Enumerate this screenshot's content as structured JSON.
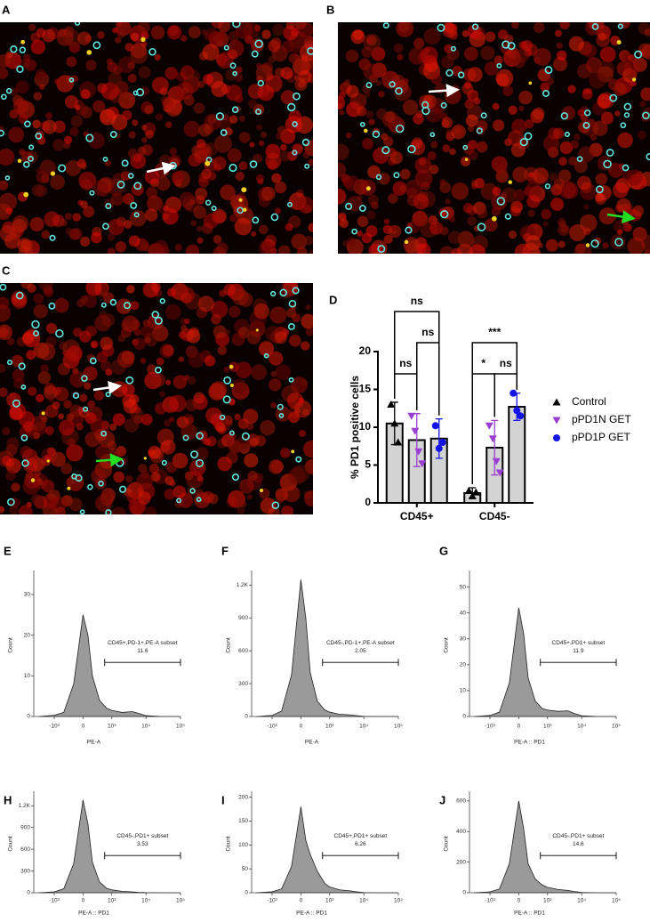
{
  "image_panels": [
    {
      "label": "A"
    },
    {
      "label": "B"
    },
    {
      "label": "C"
    }
  ],
  "chart_data": [
    {
      "panel": "D",
      "type": "bar",
      "categories": [
        "CD45+",
        "CD45-"
      ],
      "y_label": "% PD1 positive cells",
      "ylim": [
        0,
        20
      ],
      "yticks": [
        0,
        5,
        10,
        15,
        20
      ],
      "series": [
        {
          "name": "Control",
          "color": "#000000",
          "marker": "triangle",
          "values": [
            10.5,
            1.3
          ],
          "errors": [
            2.8,
            0.7
          ],
          "points": [
            [
              13,
              10.5,
              8
            ],
            [
              1.6,
              0.9,
              1.4
            ]
          ]
        },
        {
          "name": "pPD1N GET",
          "color": "#9b3fd1",
          "marker": "triangle-down",
          "values": [
            8.3,
            7.3
          ],
          "errors": [
            3.5,
            3.6
          ],
          "points": [
            [
              11.5,
              9.5,
              6.8,
              5.2
            ],
            [
              10.2,
              8.5,
              5.5,
              4
            ]
          ]
        },
        {
          "name": "pPD1P GET",
          "color": "#1414e6",
          "marker": "circle",
          "values": [
            8.5,
            12.7
          ],
          "errors": [
            2.6,
            1.8
          ],
          "points": [
            [
              10.2,
              7.2,
              8
            ],
            [
              14.5,
              12.2,
              11.5
            ]
          ]
        }
      ],
      "annotations": [
        "ns",
        "ns",
        "ns",
        "***",
        "*",
        "ns"
      ]
    },
    {
      "panel": "E",
      "type": "area",
      "color": "#9a9a9a",
      "x_label": "PE-A",
      "y_label": "Count",
      "x": [
        -3000,
        -1000,
        -500,
        -200,
        0,
        100,
        200,
        400,
        700,
        1000,
        2000,
        4000,
        6000,
        10000,
        30000,
        100000
      ],
      "values": [
        0,
        0.3,
        1,
        8,
        25,
        20,
        10,
        4,
        2,
        1.5,
        1,
        1.2,
        0.8,
        0.2,
        0,
        0
      ],
      "xlim": [
        -4000,
        100000
      ],
      "xticks": [
        {
          "value": -1000,
          "label": "-10³"
        },
        0,
        {
          "value": 1000,
          "label": "10³"
        },
        {
          "value": 10000,
          "label": "10⁴"
        },
        {
          "value": 100000,
          "label": "10⁵"
        }
      ],
      "ylim": [
        0,
        35
      ],
      "yticks": [
        0,
        10,
        20,
        30
      ],
      "gate_label": "CD45+,PD-1+,PE-A subset",
      "gate_value": 11.6,
      "gate_x": [
        600,
        100000
      ]
    },
    {
      "panel": "F",
      "type": "area",
      "color": "#9a9a9a",
      "x_label": "PE-A",
      "y_label": "Count",
      "x": [
        -3000,
        -1000,
        -500,
        -200,
        0,
        100,
        200,
        400,
        700,
        1000,
        2000,
        4000,
        6000,
        10000,
        30000,
        100000
      ],
      "values": [
        0,
        10,
        50,
        380,
        1250,
        900,
        400,
        140,
        60,
        40,
        20,
        15,
        8,
        2,
        0,
        0
      ],
      "xlim": [
        -4000,
        100000
      ],
      "xticks": [
        {
          "value": -1000,
          "label": "-10³"
        },
        0,
        {
          "value": 1000,
          "label": "10³"
        },
        {
          "value": 10000,
          "label": "10⁴"
        },
        {
          "value": 100000,
          "label": "10⁵"
        }
      ],
      "ylim": [
        0,
        1300
      ],
      "yticks": [
        0,
        300,
        600,
        900,
        {
          "value": 1200,
          "label": "1.2K"
        }
      ],
      "gate_label": "CD45-,PD-1+,PE-A subset",
      "gate_value": 2.05,
      "gate_x": [
        600,
        100000
      ]
    },
    {
      "panel": "G",
      "type": "area",
      "color": "#9a9a9a",
      "x_label": "PE-A :: PD1",
      "y_label": "Count",
      "x": [
        -3000,
        -1000,
        -500,
        -200,
        0,
        100,
        200,
        400,
        700,
        1000,
        2000,
        4000,
        6000,
        10000,
        30000,
        100000
      ],
      "values": [
        0,
        0.4,
        1.7,
        13,
        42,
        32,
        15,
        6,
        3,
        2.5,
        2,
        2.2,
        1.2,
        0.3,
        0,
        0
      ],
      "xlim": [
        -4000,
        100000
      ],
      "xticks": [
        {
          "value": -1000,
          "label": "-10³"
        },
        0,
        {
          "value": 1000,
          "label": "10³"
        },
        {
          "value": 10000,
          "label": "10⁴"
        },
        {
          "value": 100000,
          "label": "10⁵"
        }
      ],
      "ylim": [
        0,
        55
      ],
      "yticks": [
        0,
        10,
        20,
        30,
        40,
        50
      ],
      "gate_label": "CD45+,PD1+ subset",
      "gate_value": 11.9,
      "gate_x": [
        600,
        100000
      ]
    },
    {
      "panel": "H",
      "type": "area",
      "color": "#9a9a9a",
      "x_label": "PE-A :: PD1",
      "y_label": "Count",
      "x": [
        -3000,
        -1000,
        -500,
        -200,
        0,
        100,
        200,
        400,
        700,
        1000,
        2000,
        4000,
        6000,
        10000,
        30000,
        100000
      ],
      "values": [
        0,
        12,
        55,
        400,
        1280,
        950,
        420,
        150,
        60,
        40,
        20,
        12,
        6,
        2,
        0,
        0
      ],
      "xlim": [
        -4000,
        100000
      ],
      "xticks": [
        {
          "value": -1000,
          "label": "-10³"
        },
        0,
        {
          "value": 1000,
          "label": "10³"
        },
        {
          "value": 10000,
          "label": "10⁴"
        },
        {
          "value": 100000,
          "label": "10⁵"
        }
      ],
      "ylim": [
        0,
        1350
      ],
      "yticks": [
        0,
        300,
        600,
        900,
        {
          "value": 1200,
          "label": "1.2K"
        }
      ],
      "gate_label": "CD45-,PD1+ subset",
      "gate_value": 3.53,
      "gate_x": [
        600,
        100000
      ]
    },
    {
      "panel": "I",
      "type": "area",
      "color": "#9a9a9a",
      "x_label": "PE-A :: PD1",
      "y_label": "Count",
      "x": [
        -3000,
        -1000,
        -500,
        -200,
        0,
        100,
        200,
        400,
        700,
        1000,
        2000,
        4000,
        6000,
        10000,
        30000,
        100000
      ],
      "values": [
        0,
        2,
        8,
        55,
        180,
        110,
        80,
        45,
        20,
        12,
        6,
        4,
        2,
        0.5,
        0,
        0
      ],
      "xlim": [
        -4000,
        100000
      ],
      "xticks": [
        {
          "value": -1000,
          "label": "-10³"
        },
        0,
        {
          "value": 1000,
          "label": "10³"
        },
        {
          "value": 10000,
          "label": "10⁴"
        },
        {
          "value": 100000,
          "label": "10⁵"
        }
      ],
      "ylim": [
        0,
        205
      ],
      "yticks": [
        0,
        50,
        100,
        150,
        200
      ],
      "gate_label": "CD45+,PD1+ subset",
      "gate_value": 6.26,
      "gate_x": [
        600,
        100000
      ]
    },
    {
      "panel": "J",
      "type": "area",
      "color": "#9a9a9a",
      "x_label": "PE-A :: PD1",
      "y_label": "Count",
      "x": [
        -3000,
        -1000,
        -500,
        -200,
        0,
        100,
        200,
        400,
        700,
        1000,
        2000,
        4000,
        6000,
        10000,
        30000,
        100000
      ],
      "values": [
        0,
        6,
        25,
        190,
        600,
        420,
        190,
        90,
        50,
        35,
        22,
        15,
        8,
        2,
        0,
        0
      ],
      "xlim": [
        -4000,
        100000
      ],
      "xticks": [
        {
          "value": -1000,
          "label": "-10³"
        },
        0,
        {
          "value": 1000,
          "label": "10³"
        },
        {
          "value": 10000,
          "label": "10⁴"
        },
        {
          "value": 100000,
          "label": "10⁵"
        }
      ],
      "ylim": [
        0,
        640
      ],
      "yticks": [
        0,
        200,
        400,
        600
      ],
      "gate_label": "CD45-,PD1+ subset",
      "gate_value": 14.6,
      "gate_x": [
        600,
        100000
      ]
    }
  ]
}
